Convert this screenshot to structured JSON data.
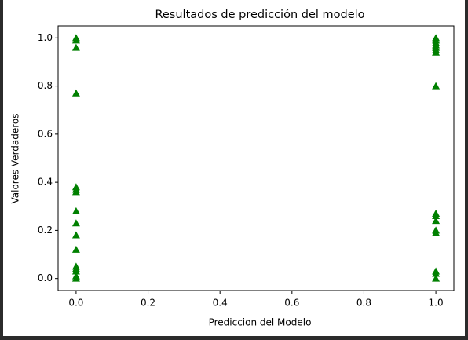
{
  "chart_data": {
    "type": "scatter",
    "title": "Resultados de predicción del modelo",
    "x_label": "Prediccion del Modelo",
    "y_label": "Valores Verdaderos",
    "marker": "triangle",
    "color": "#008000",
    "series": [
      {
        "x": [
          0,
          0,
          0,
          0,
          0,
          0,
          0,
          0,
          0,
          0,
          0,
          0,
          0,
          0,
          0,
          0,
          1,
          1,
          1,
          1,
          1,
          1,
          1,
          1,
          1,
          1,
          1,
          1,
          1,
          1,
          1,
          1
        ],
        "y": [
          1.0,
          0.99,
          0.96,
          0.77,
          0.38,
          0.37,
          0.36,
          0.28,
          0.23,
          0.18,
          0.12,
          0.05,
          0.04,
          0.03,
          0.01,
          0.0,
          1.0,
          0.99,
          0.98,
          0.97,
          0.96,
          0.95,
          0.94,
          0.8,
          0.27,
          0.26,
          0.24,
          0.2,
          0.19,
          0.03,
          0.02,
          0.0
        ]
      }
    ],
    "xlim": [
      -0.05,
      1.05
    ],
    "ylim": [
      -0.05,
      1.05
    ],
    "xticks": [
      {
        "value": 0,
        "label": "0.0"
      },
      0.2,
      0.4,
      0.6,
      0.8,
      {
        "value": 1,
        "label": "1.0"
      }
    ],
    "yticks": [
      {
        "value": 0,
        "label": "0.0"
      },
      0.2,
      0.4,
      0.6,
      0.8,
      {
        "value": 1,
        "label": "1.0"
      }
    ],
    "grid": false
  }
}
